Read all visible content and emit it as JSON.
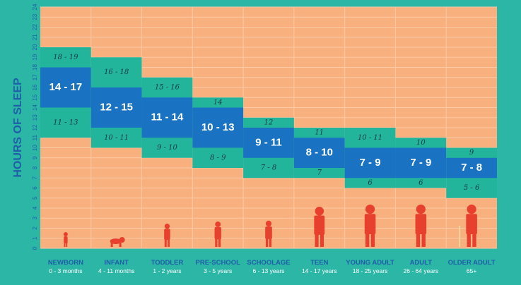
{
  "colors": {
    "background": "#2bb6a6",
    "plot": "#f9b07f",
    "grid": "#fbcaa6",
    "recommended": "#1a73c2",
    "may_be_appropriate": "#22b59b",
    "axis_text": "#1f5fa8",
    "silhouette": "#e8402e"
  },
  "chart_data": {
    "type": "bar",
    "title": "",
    "ylabel": "HOURS OF SLEEP",
    "xlabel": "",
    "ylim": [
      0,
      24
    ],
    "yticks": [
      "0",
      "1",
      "2",
      "3",
      "4",
      "5",
      "6",
      "7",
      "8",
      "9",
      "10",
      "11",
      "12",
      "13",
      "14",
      "15",
      "16",
      "17",
      "18",
      "19",
      "20",
      "21",
      "22",
      "23",
      "24"
    ],
    "grid": true,
    "categories": [
      {
        "name": "NEWBORN",
        "age": "0 - 3 months",
        "icon": "newborn-silhouette-icon",
        "recommended": [
          14,
          17
        ],
        "appropriate_low": [
          11,
          13
        ],
        "appropriate_high": [
          18,
          19
        ],
        "range_label": "14 - 17",
        "low_label": "11 - 13",
        "high_label": "18 - 19"
      },
      {
        "name": "INFANT",
        "age": "4 - 11 months",
        "icon": "crawling-infant-silhouette-icon",
        "recommended": [
          12,
          15
        ],
        "appropriate_low": [
          10,
          11
        ],
        "appropriate_high": [
          16,
          18
        ],
        "range_label": "12 - 15",
        "low_label": "10 - 11",
        "high_label": "16 - 18"
      },
      {
        "name": "TODDLER",
        "age": "1 - 2 years",
        "icon": "toddler-silhouette-icon",
        "recommended": [
          11,
          14
        ],
        "appropriate_low": [
          9,
          10
        ],
        "appropriate_high": [
          15,
          16
        ],
        "range_label": "11 - 14",
        "low_label": "9 - 10",
        "high_label": "15 - 16"
      },
      {
        "name": "PRE-SCHOOL",
        "age": "3 - 5 years",
        "icon": "preschooler-silhouette-icon",
        "recommended": [
          10,
          13
        ],
        "appropriate_low": [
          8,
          9
        ],
        "appropriate_high": [
          14,
          14
        ],
        "range_label": "10 - 13",
        "low_label": "8 - 9",
        "high_label": "14"
      },
      {
        "name": "SCHOOLAGE",
        "age": "6 - 13 years",
        "icon": "child-silhouette-icon",
        "recommended": [
          9,
          11
        ],
        "appropriate_low": [
          7,
          8
        ],
        "appropriate_high": [
          12,
          12
        ],
        "range_label": "9 - 11",
        "low_label": "7 - 8",
        "high_label": "12"
      },
      {
        "name": "TEEN",
        "age": "14 - 17 years",
        "icon": "teen-silhouette-icon",
        "recommended": [
          8,
          10
        ],
        "appropriate_low": [
          7,
          7
        ],
        "appropriate_high": [
          11,
          11
        ],
        "range_label": "8 - 10",
        "low_label": "7",
        "high_label": "11"
      },
      {
        "name": "YOUNG ADULT",
        "age": "18 - 25 years",
        "icon": "young-adult-silhouette-icon",
        "recommended": [
          7,
          9
        ],
        "appropriate_low": [
          6,
          6
        ],
        "appropriate_high": [
          10,
          11
        ],
        "range_label": "7 - 9",
        "low_label": "6",
        "high_label": "10 - 11"
      },
      {
        "name": "ADULT",
        "age": "26 - 64 years",
        "icon": "adult-silhouette-icon",
        "recommended": [
          7,
          9
        ],
        "appropriate_low": [
          6,
          6
        ],
        "appropriate_high": [
          10,
          10
        ],
        "range_label": "7 - 9",
        "low_label": "6",
        "high_label": "10"
      },
      {
        "name": "OLDER ADULT",
        "age": "65+",
        "icon": "older-adult-with-cane-silhouette-icon",
        "recommended": [
          7,
          8
        ],
        "appropriate_low": [
          5,
          6
        ],
        "appropriate_high": [
          9,
          9
        ],
        "range_label": "7 - 8",
        "low_label": "5 - 6",
        "high_label": "9"
      }
    ]
  }
}
